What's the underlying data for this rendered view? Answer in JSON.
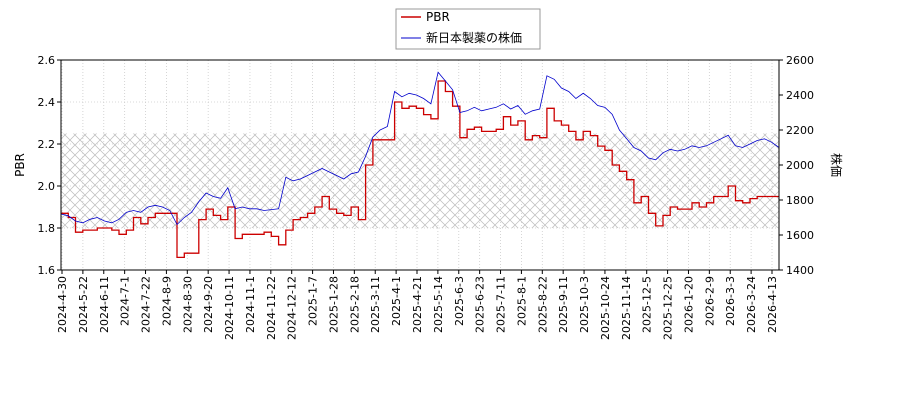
{
  "chart_data": {
    "type": "line",
    "title": "",
    "legend": {
      "placement": "top-center",
      "entries": [
        "PBR",
        "新日本製薬の株価"
      ]
    },
    "xlabel": "",
    "ylabel_left": "PBR",
    "ylabel_right": "株価",
    "ylim_left": [
      1.6,
      2.6
    ],
    "ylim_right": [
      1400,
      2600
    ],
    "yticks_left": [
      "1.6",
      "1.8",
      "2.0",
      "2.2",
      "2.4",
      "2.6"
    ],
    "yticks_right": [
      "1400",
      "1600",
      "1800",
      "2000",
      "2200",
      "2400",
      "2600"
    ],
    "grid": true,
    "hatched_band": {
      "left_axis_range": [
        1.8,
        2.25
      ],
      "style": "crosshatch"
    },
    "xticks": [
      "2024-4-30",
      "2024-5-22",
      "2024-6-11",
      "2024-7-1",
      "2024-7-22",
      "2024-8-9",
      "2024-8-30",
      "2024-9-20",
      "2024-10-11",
      "2024-11-1",
      "2024-11-22",
      "2024-12-12",
      "2025-1-7",
      "2025-1-28",
      "2025-2-18",
      "2025-3-11",
      "2025-4-1",
      "2025-4-21",
      "2025-5-14",
      "2025-6-3",
      "2025-6-23",
      "2025-7-11",
      "2025-8-1",
      "2025-8-22",
      "2025-9-11",
      "2025-10-3",
      "2025-10-24",
      "2025-11-14",
      "2025-12-5",
      "2025-12-25",
      "2026-1-20",
      "2026-2-9",
      "2026-3-3",
      "2026-3-24",
      "2026-4-13"
    ],
    "series": [
      {
        "name": "PBR",
        "axis": "left",
        "color": "#cc0000",
        "values": [
          1.87,
          1.85,
          1.78,
          1.79,
          1.79,
          1.8,
          1.8,
          1.79,
          1.77,
          1.79,
          1.85,
          1.82,
          1.85,
          1.87,
          1.87,
          1.87,
          1.66,
          1.68,
          1.68,
          1.84,
          1.89,
          1.86,
          1.84,
          1.9,
          1.75,
          1.77,
          1.77,
          1.77,
          1.78,
          1.76,
          1.72,
          1.79,
          1.84,
          1.85,
          1.87,
          1.9,
          1.95,
          1.89,
          1.87,
          1.86,
          1.9,
          1.84,
          2.1,
          2.22,
          2.22,
          2.22,
          2.4,
          2.37,
          2.38,
          2.37,
          2.34,
          2.32,
          2.5,
          2.45,
          2.38,
          2.23,
          2.27,
          2.28,
          2.26,
          2.26,
          2.27,
          2.33,
          2.29,
          2.31,
          2.22,
          2.24,
          2.23,
          2.37,
          2.31,
          2.29,
          2.26,
          2.22,
          2.26,
          2.24,
          2.19,
          2.17,
          2.1,
          2.07,
          2.03,
          1.92,
          1.95,
          1.87,
          1.81,
          1.86,
          1.9,
          1.89,
          1.89,
          1.92,
          1.9,
          1.92,
          1.95,
          1.95,
          2.0,
          1.93,
          1.92,
          1.94,
          1.95,
          1.95,
          1.95,
          1.95
        ]
      },
      {
        "name": "新日本製薬の株価",
        "axis": "right",
        "color": "#0000cc",
        "values": [
          1720,
          1710,
          1680,
          1670,
          1690,
          1700,
          1680,
          1670,
          1690,
          1730,
          1740,
          1730,
          1760,
          1770,
          1760,
          1740,
          1660,
          1700,
          1730,
          1790,
          1840,
          1820,
          1810,
          1870,
          1750,
          1760,
          1750,
          1750,
          1740,
          1745,
          1750,
          1930,
          1910,
          1920,
          1940,
          1960,
          1980,
          1960,
          1940,
          1920,
          1950,
          1960,
          2050,
          2160,
          2200,
          2220,
          2420,
          2390,
          2410,
          2400,
          2380,
          2350,
          2530,
          2480,
          2430,
          2300,
          2310,
          2330,
          2310,
          2320,
          2330,
          2350,
          2320,
          2340,
          2290,
          2310,
          2320,
          2510,
          2490,
          2440,
          2420,
          2380,
          2410,
          2380,
          2340,
          2330,
          2290,
          2200,
          2150,
          2100,
          2080,
          2040,
          2030,
          2070,
          2090,
          2080,
          2090,
          2110,
          2100,
          2110,
          2130,
          2150,
          2170,
          2110,
          2100,
          2120,
          2140,
          2150,
          2130,
          2100
        ]
      }
    ]
  }
}
